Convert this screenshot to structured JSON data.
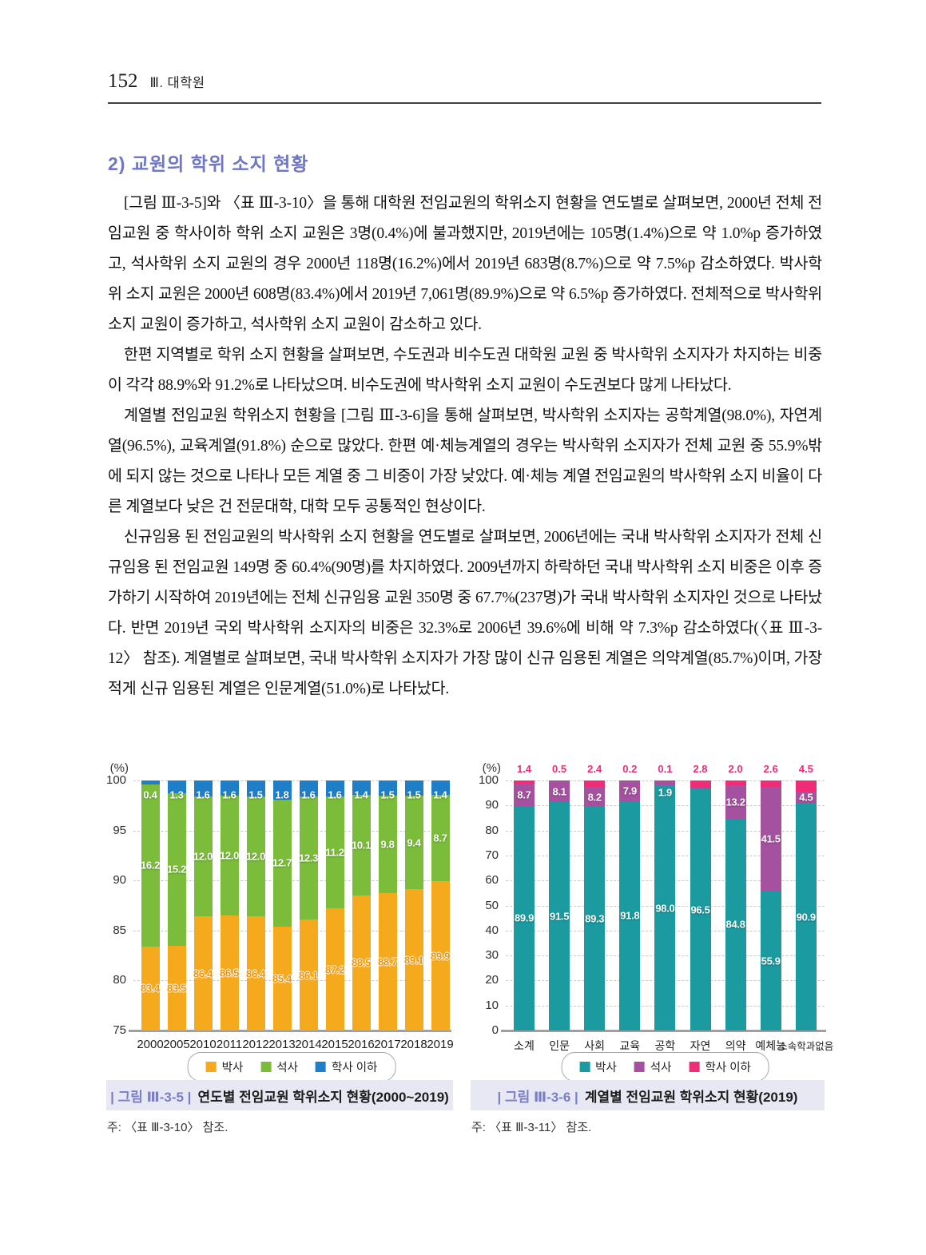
{
  "page": {
    "header": {
      "page_number": "152",
      "section": "Ⅲ. 대학원"
    },
    "heading": "2) 교원의 학위 소지 현황",
    "paragraphs": [
      "[그림 Ⅲ-3-5]와 〈표 Ⅲ-3-10〉을 통해 대학원 전임교원의 학위소지 현황을 연도별로 살펴보면,  2000년 전체 전임교원 중 학사이하 학위 소지 교원은 3명(0.4%)에 불과했지만, 2019년에는 105명(1.4%)으로 약 1.0%p 증가하였고, 석사학위 소지 교원의 경우 2000년 118명(16.2%)에서 2019년 683명(8.7%)으로 약 7.5%p 감소하였다. 박사학위 소지 교원은 2000년 608명(83.4%)에서 2019년 7,061명(89.9%)으로 약 6.5%p 증가하였다. 전체적으로 박사학위 소지 교원이 증가하고, 석사학위 소지 교원이 감소하고 있다.",
      "한편 지역별로 학위 소지 현황을 살펴보면, 수도권과 비수도권 대학원 교원 중 박사학위 소지자가 차지하는 비중이 각각 88.9%와 91.2%로 나타났으며. 비수도권에 박사학위 소지 교원이 수도권보다 많게 나타났다.",
      "계열별 전임교원 학위소지 현황을 [그림 Ⅲ-3-6]을 통해 살펴보면, 박사학위 소지자는 공학계열(98.0%), 자연계열(96.5%), 교육계열(91.8%) 순으로 많았다. 한편 예·체능계열의 경우는 박사학위 소지자가 전체 교원 중 55.9%밖에 되지 않는 것으로 나타나 모든 계열 중 그 비중이 가장 낮았다. 예·체능 계열 전임교원의 박사학위 소지 비율이 다른 계열보다 낮은 건 전문대학, 대학 모두 공통적인 현상이다.",
      "신규임용 된 전임교원의 박사학위 소지 현황을 연도별로 살펴보면, 2006년에는 국내 박사학위 소지자가 전체 신규임용 된 전임교원 149명 중 60.4%(90명)를 차지하였다. 2009년까지 하락하던 국내 박사학위 소지 비중은 이후 증가하기 시작하여 2019년에는 전체 신규임용 교원 350명 중 67.7%(237명)가 국내 박사학위 소지자인 것으로 나타났다. 반면 2019년 국외 박사학위 소지자의 비중은 32.3%로 2006년 39.6%에 비해 약 7.3%p 감소하였다(〈표 Ⅲ-3-12〉 참조). 계열별로 살펴보면, 국내 박사학위 소지자가 가장 많이 신규 임용된 계열은 의약계열(85.7%)이며, 가장 적게 신규 임용된 계열은 인문계열(51.0%)로 나타났다."
    ]
  },
  "figures": [
    {
      "caption_label": "| 그림 Ⅲ-3-5 |",
      "caption_title": "연도별 전임교원 학위소지 현황(2000~2019)",
      "note": "주: 〈표 Ⅲ-3-10〉 참조."
    },
    {
      "caption_label": "| 그림 Ⅲ-3-6 |",
      "caption_title": "계열별 전임교원 학위소지 현황(2019)",
      "note": "주: 〈표 Ⅲ-3-11〉 참조."
    }
  ],
  "chart_data": [
    {
      "type": "bar",
      "stacked": true,
      "title": "연도별 전임교원 학위소지 현황(2000~2019)",
      "ylabel": "(%)",
      "xlabel": "",
      "ylim": [
        75,
        100
      ],
      "yticks": [
        75,
        80,
        85,
        90,
        95,
        100
      ],
      "grid": true,
      "legend_position": "bottom",
      "categories": [
        "2000",
        "2005",
        "2010",
        "2011",
        "2012",
        "2013",
        "2014",
        "2015",
        "2016",
        "2017",
        "2018",
        "2019"
      ],
      "series": [
        {
          "name": "박사",
          "color": "#F5A91D",
          "values": [
            83.4,
            83.5,
            86.4,
            86.5,
            86.4,
            85.4,
            86.1,
            87.2,
            88.5,
            88.7,
            89.1,
            89.9
          ],
          "labels": [
            "83.4",
            "83.5",
            "86.4",
            "86.5",
            "86.4",
            "85.4",
            "86.1",
            "87.2",
            "88.5",
            "88.7",
            "89.1",
            "89.9"
          ],
          "label": {
            "color": "#F59000",
            "placement": "center",
            "outline": true
          }
        },
        {
          "name": "석사",
          "color": "#7BBD3B",
          "values": [
            16.2,
            15.2,
            12.0,
            12.0,
            12.0,
            12.7,
            12.3,
            11.2,
            10.1,
            9.8,
            9.4,
            8.7
          ],
          "labels": [
            "16.2",
            "15.2",
            "12.0",
            "12.0",
            "12.0",
            "12.7",
            "12.3",
            "11.2",
            "10.1",
            "9.8",
            "9.4",
            "8.7"
          ],
          "label": {
            "color": "#ffffff",
            "placement": "center"
          }
        },
        {
          "name": "학사 이하",
          "color": "#1E7EC8",
          "values": [
            0.4,
            1.3,
            1.6,
            1.6,
            1.5,
            1.8,
            1.6,
            1.6,
            1.4,
            1.5,
            1.5,
            1.4
          ],
          "labels": [
            "0.4",
            "1.3",
            "1.6",
            "1.6",
            "1.5",
            "1.8",
            "1.6",
            "1.6",
            "1.4",
            "1.5",
            "1.5",
            "1.4"
          ],
          "label": {
            "color": "#ffffff",
            "placement": "top"
          }
        }
      ]
    },
    {
      "type": "bar",
      "stacked": true,
      "title": "계열별 전임교원 학위소지 현황(2019)",
      "ylabel": "(%)",
      "xlabel": "",
      "ylim": [
        0,
        100
      ],
      "yticks": [
        0,
        10,
        20,
        30,
        40,
        50,
        60,
        70,
        80,
        90,
        100
      ],
      "grid": true,
      "legend_position": "bottom",
      "categories": [
        "소계",
        "인문",
        "사회",
        "교육",
        "공학",
        "자연",
        "의약",
        "예체능",
        "소속학과없음"
      ],
      "series": [
        {
          "name": "박사",
          "color": "#1B9AA0",
          "values": [
            89.9,
            91.5,
            89.3,
            91.8,
            98.0,
            96.5,
            84.8,
            55.9,
            90.9
          ],
          "labels": [
            "89.9",
            "91.5",
            "89.3",
            "91.8",
            "98.0",
            "96.5",
            "84.8",
            "55.9",
            "90.9"
          ],
          "label": {
            "color": "#ffffff",
            "placement": "center"
          }
        },
        {
          "name": "석사",
          "color": "#A4519F",
          "values": [
            8.7,
            8.1,
            8.2,
            7.9,
            1.9,
            0.7,
            13.2,
            41.5,
            4.5
          ],
          "labels": [
            "8.7",
            "8.1",
            "8.2",
            "7.9",
            "1.9",
            null,
            "13.2",
            "41.5",
            "4.5"
          ],
          "label": {
            "color": "#ffffff",
            "placement": "center"
          },
          "label_y": {
            "4": 95.2
          }
        },
        {
          "name": "학사 이하",
          "color": "#EE2C78",
          "values": [
            1.4,
            0.5,
            2.4,
            0.2,
            0.1,
            2.8,
            2.0,
            2.6,
            4.5
          ],
          "labels": [
            "1.4",
            "0.5",
            "2.4",
            "0.2",
            "0.1",
            "2.8",
            "2.0",
            "2.6",
            "4.5"
          ],
          "label": {
            "color": "#EE2C78",
            "placement": "above"
          }
        }
      ]
    }
  ]
}
